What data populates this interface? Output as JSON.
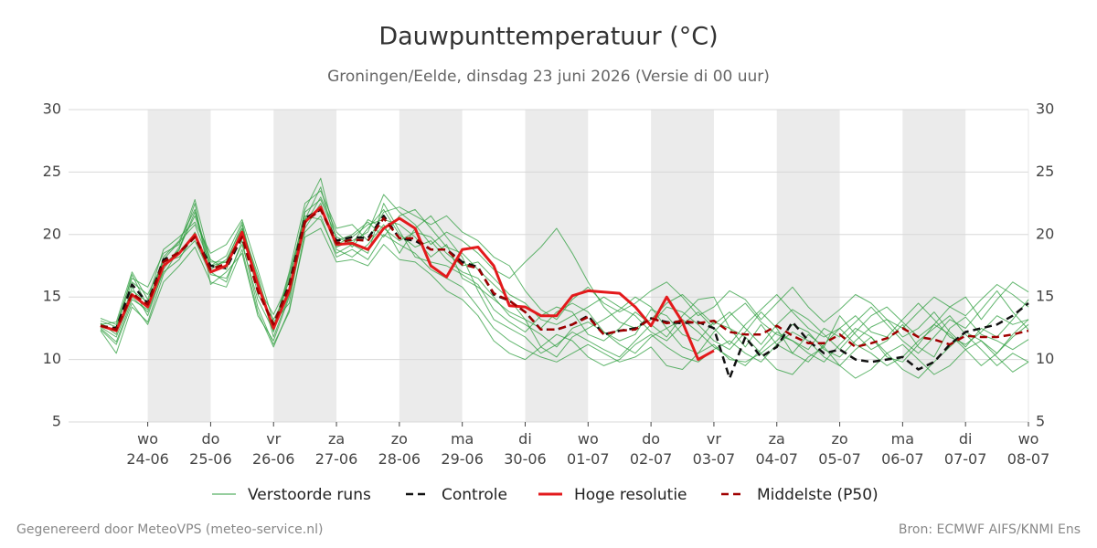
{
  "chart_data": {
    "type": "line",
    "title": "Dauwpunttemperatuur (°C)",
    "subtitle": "Groningen/Eelde, dinsdag 23 juni 2026 (Versie di 00 uur)",
    "footer_left": "Gegenereerd door MeteoVPS (meteo-service.nl)",
    "footer_right": "Bron: ECMWF AIFS/KNMI Ens",
    "categories": [
      null,
      null,
      null,
      "wo\n24-06",
      null,
      null,
      null,
      "do\n25-06",
      null,
      null,
      null,
      "vr\n26-06",
      null,
      null,
      null,
      "za\n27-06",
      null,
      null,
      null,
      "zo\n28-06",
      null,
      null,
      null,
      "ma\n29-06",
      null,
      null,
      null,
      "di\n30-06",
      null,
      null,
      null,
      "wo\n01-07",
      null,
      null,
      null,
      "do\n02-07",
      null,
      null,
      null,
      "vr\n03-07",
      null,
      null,
      null,
      "za\n04-07",
      null,
      null,
      null,
      "zo\n05-07",
      null,
      null,
      null,
      "ma\n06-07",
      null,
      null,
      null,
      "di\n07-07",
      null,
      null,
      null,
      "wo\n08-07"
    ],
    "ylim": [
      5,
      30
    ],
    "yticks": [
      5,
      10,
      15,
      20,
      25,
      30
    ],
    "grid": true,
    "ensemble": {
      "name": "Verstoorde runs",
      "color": "#2e9e3e",
      "members": [
        [
          12.9,
          12,
          15.8,
          13.5,
          17.2,
          19,
          21.5,
          18,
          17.2,
          20.5,
          16.5,
          11.8,
          15.2,
          20.8,
          23,
          20.2,
          19,
          20.5,
          22,
          20,
          19,
          19.5,
          18,
          17,
          16.5,
          15,
          13.5,
          12.8,
          12,
          11,
          12.5,
          13,
          12.2,
          11.5,
          12,
          14,
          13.5,
          12,
          11.5,
          13,
          12.5,
          11,
          12.8,
          11.2,
          10.5,
          12,
          11,
          13.5,
          12,
          10.8,
          11.5,
          12.8,
          11,
          10.2,
          12.5,
          13.4,
          12,
          11.5,
          10.8,
          11.6
        ],
        [
          12.5,
          11.4,
          14.8,
          14,
          18.2,
          19.5,
          22,
          17.5,
          18.3,
          21,
          15.8,
          13.6,
          16.2,
          22,
          24.5,
          19.5,
          20,
          21,
          19.8,
          21.5,
          22,
          20.5,
          19,
          18.5,
          17.2,
          16,
          14.8,
          13.2,
          11,
          10.2,
          11.8,
          12.5,
          13.2,
          14,
          15,
          14.2,
          12.5,
          11,
          10.5,
          12.2,
          13.5,
          14.5,
          13,
          12,
          11.5,
          10.8,
          12.5,
          11.8,
          13,
          14.2,
          12.8,
          11.5,
          10.5,
          11.8,
          13.2,
          12.5,
          14,
          15.5,
          13.8,
          12.4
        ],
        [
          13.1,
          12.6,
          16.2,
          15.2,
          17.8,
          18.2,
          19.5,
          16.8,
          16.5,
          19.2,
          14.8,
          12.3,
          16.8,
          21.5,
          21.2,
          18.5,
          19.2,
          18.5,
          22.5,
          20.3,
          18.2,
          17.8,
          17.5,
          16.8,
          16,
          14,
          13,
          12.2,
          13.5,
          14.2,
          13.8,
          12,
          11.5,
          12.5,
          13.8,
          12.8,
          11.8,
          13.5,
          14.8,
          15,
          12.5,
          11.8,
          10.5,
          11.5,
          12.8,
          12.2,
          10.8,
          10.2,
          11.5,
          12.6,
          13.2,
          11.8,
          12.5,
          13.8,
          12.2,
          11,
          12.5,
          11.8,
          13.2,
          14.8
        ],
        [
          12.3,
          10.5,
          14.2,
          13,
          16.8,
          18.8,
          22.5,
          16,
          17,
          18.5,
          13.5,
          11.5,
          15,
          20.5,
          22.5,
          18.8,
          18.2,
          19.2,
          20.8,
          18.5,
          20.5,
          21.5,
          19.8,
          18.2,
          15.5,
          13.2,
          12.5,
          11.8,
          10.5,
          11.2,
          12.2,
          11.5,
          10.8,
          10.2,
          11.5,
          12.8,
          14.2,
          13.8,
          12.8,
          11.5,
          10.8,
          12.2,
          13.8,
          12.5,
          10.5,
          9.8,
          11.2,
          12.5,
          11.2,
          10.5,
          9.5,
          10.2,
          11.5,
          12.5,
          13.5,
          12,
          10.8,
          9.5,
          10.5,
          9.8
        ],
        [
          12.8,
          13,
          17,
          14.8,
          18.8,
          19.8,
          21,
          18.5,
          19.2,
          21.2,
          17.2,
          13,
          14.5,
          21.2,
          23.8,
          19,
          19.5,
          20.2,
          23.2,
          21.8,
          20.8,
          19.2,
          20.2,
          19.5,
          18.5,
          17.2,
          16.5,
          17.8,
          19,
          20.5,
          18.5,
          16.2,
          14.2,
          13,
          12.5,
          13.2,
          14.5,
          15.2,
          14,
          12.8,
          13.8,
          12.5,
          11.2,
          12.8,
          14,
          13.2,
          12,
          10.8,
          12.2,
          13.5,
          14.2,
          13,
          11.8,
          12.8,
          14.2,
          15,
          13.2,
          14.8,
          16.2,
          15.4
        ],
        [
          12.6,
          11.8,
          15,
          13.8,
          17,
          18,
          20.2,
          17,
          16.2,
          19.5,
          14.2,
          11.2,
          13.8,
          20.2,
          21.5,
          18.2,
          18.8,
          18,
          20,
          19.2,
          18.5,
          17.2,
          16.5,
          15.8,
          14.2,
          12.5,
          11.5,
          10.8,
          10.2,
          9.8,
          10.5,
          11.2,
          10.5,
          9.8,
          10.2,
          11,
          9.5,
          9.2,
          10.5,
          11.2,
          10,
          9.8,
          10.5,
          9.2,
          8.8,
          10.2,
          11,
          9.5,
          8.5,
          9.2,
          10.5,
          11.2,
          10,
          8.8,
          9.5,
          10.8,
          11.5,
          10.2,
          9,
          9.8
        ],
        [
          13.3,
          12.8,
          16.5,
          15.8,
          18.5,
          19.2,
          22.8,
          17.8,
          17.8,
          20.2,
          16,
          12.5,
          17,
          22.5,
          23.5,
          20.5,
          20.8,
          19.5,
          21.8,
          22.2,
          21.5,
          20.8,
          21.5,
          20.2,
          19.5,
          18.2,
          17.5,
          15.5,
          14,
          13.2,
          14.8,
          15.8,
          14.5,
          13.8,
          14.5,
          15.5,
          16.2,
          15,
          13.5,
          14.2,
          15.5,
          14.8,
          13.2,
          14.5,
          15.8,
          14.2,
          13,
          14,
          15.2,
          14.5,
          13.2,
          12.5,
          13.8,
          15,
          14.2,
          13.5,
          14.8,
          16,
          15.2,
          14.2
        ],
        [
          12.4,
          11.2,
          14.5,
          12.8,
          16.2,
          17.5,
          19,
          16.2,
          15.8,
          18.8,
          13.8,
          11,
          14,
          19.8,
          20.5,
          17.8,
          18,
          17.5,
          19.2,
          18,
          17.8,
          16.8,
          15.5,
          14.8,
          13.5,
          11.5,
          10.5,
          10,
          11,
          12,
          11.5,
          10.2,
          9.5,
          10,
          11.2,
          12,
          11,
          10.2,
          9.8,
          10.8,
          11.5,
          10.5,
          9.8,
          11.2,
          12.2,
          11.5,
          10.2,
          9.5,
          10.8,
          11.8,
          10.5,
          9.2,
          8.5,
          9.8,
          11,
          12.2,
          11.5,
          10.5,
          11.8,
          12.8
        ],
        [
          12.9,
          12.2,
          15.5,
          14.6,
          18,
          19.4,
          20.8,
          17.5,
          17.8,
          20.8,
          15.2,
          13.2,
          15.5,
          21.8,
          22.8,
          19.8,
          19.2,
          21.2,
          20.5,
          19.5,
          20.2,
          19.8,
          18.5,
          17.5,
          17.8,
          16.5,
          15.2,
          14.5,
          13.2,
          12.8,
          13.5,
          14.2,
          15,
          14.2,
          13.5,
          12.2,
          11.5,
          12.8,
          13.8,
          12.5,
          11.2,
          12.8,
          14,
          15.2,
          13.8,
          12.5,
          11.8,
          12.5,
          13.5,
          12.2,
          11.8,
          13.2,
          14.5,
          13.2,
          11.8,
          11.2,
          12.2,
          13.5,
          12.8,
          13.2
        ],
        [
          12.7,
          12.4,
          16.8,
          14.2,
          17.5,
          18.8,
          21.8,
          17.2,
          18,
          20.5,
          16.8,
          12.2,
          16.5,
          21.2,
          22.2,
          19.2,
          19.8,
          20.8,
          21.2,
          20.8,
          19.8,
          18.2,
          19.2,
          16.5,
          15.8,
          14.8,
          13.8,
          13.2,
          12.5,
          13.8,
          14.5,
          13.8,
          12.2,
          11.2,
          10.5,
          11.8,
          12.5,
          13.2,
          12.2,
          11,
          10.2,
          9.5,
          10.8,
          12.2,
          11.5,
          10.5,
          9.8,
          11.2,
          12.5,
          11.8,
          10.2,
          9.8,
          11.2,
          12.8,
          12,
          10.8,
          9.5,
          10.5,
          12,
          13.2
        ]
      ]
    },
    "series": [
      {
        "name": "Controle",
        "color": "#111111",
        "dash": true,
        "values": [
          12.7,
          12.5,
          16,
          14.5,
          18,
          18.5,
          19.8,
          17.5,
          17.3,
          19.8,
          15.5,
          12.8,
          16,
          21.3,
          22,
          19.5,
          19.8,
          19.7,
          21.5,
          19.7,
          19.5,
          18.8,
          18.8,
          17.8,
          17.4,
          15.2,
          14.7,
          13.8,
          12.4,
          12.4,
          12.8,
          13.5,
          12,
          12.3,
          12.5,
          13.3,
          13,
          12.9,
          13,
          12.5,
          8.5,
          11.8,
          10.2,
          11,
          13,
          11.5,
          10.5,
          10.8,
          10,
          9.8,
          10,
          10.2,
          9.2,
          9.8,
          11.2,
          12.2,
          12.5,
          12.8,
          13.5,
          14.5
        ]
      },
      {
        "name": "Hoge resolutie",
        "color": "#e31a1c",
        "dash": false,
        "values": [
          12.7,
          12.3,
          15.2,
          14.2,
          17.5,
          18.5,
          20,
          17,
          17.5,
          20.2,
          16,
          12.5,
          15.5,
          21,
          22.2,
          19.2,
          19.3,
          18.8,
          20.5,
          21.3,
          20.5,
          17.5,
          16.6,
          18.8,
          19,
          17.5,
          14.3,
          14.2,
          13.5,
          13.5,
          15.1,
          15.5,
          15.4,
          15.3,
          14.2,
          12.7,
          15,
          13,
          10,
          10.7,
          null,
          null,
          null,
          null,
          null,
          null,
          null,
          null,
          null,
          null,
          null,
          null,
          null,
          null,
          null,
          null,
          null,
          null,
          null,
          null
        ]
      },
      {
        "name": "Middelste (P50)",
        "color": "#a00000",
        "dash": true,
        "values": [
          12.7,
          12.4,
          15.3,
          14.4,
          17.8,
          18.6,
          19.8,
          17.2,
          17.7,
          19.8,
          15.5,
          12.8,
          15.8,
          21,
          22,
          19.3,
          19.6,
          19.5,
          21.3,
          19.7,
          19.7,
          18.8,
          18.8,
          17.6,
          17.3,
          15.3,
          14.7,
          13.8,
          12.4,
          12.4,
          12.8,
          13.4,
          12,
          12.3,
          12.4,
          13.3,
          12.9,
          13.1,
          12.9,
          13.1,
          12.2,
          12,
          12,
          12.7,
          11.9,
          11.3,
          11.3,
          12,
          11,
          11.3,
          11.7,
          12.5,
          11.8,
          11.6,
          11.2,
          11.9,
          11.8,
          11.8,
          12,
          12.3
        ]
      }
    ]
  }
}
